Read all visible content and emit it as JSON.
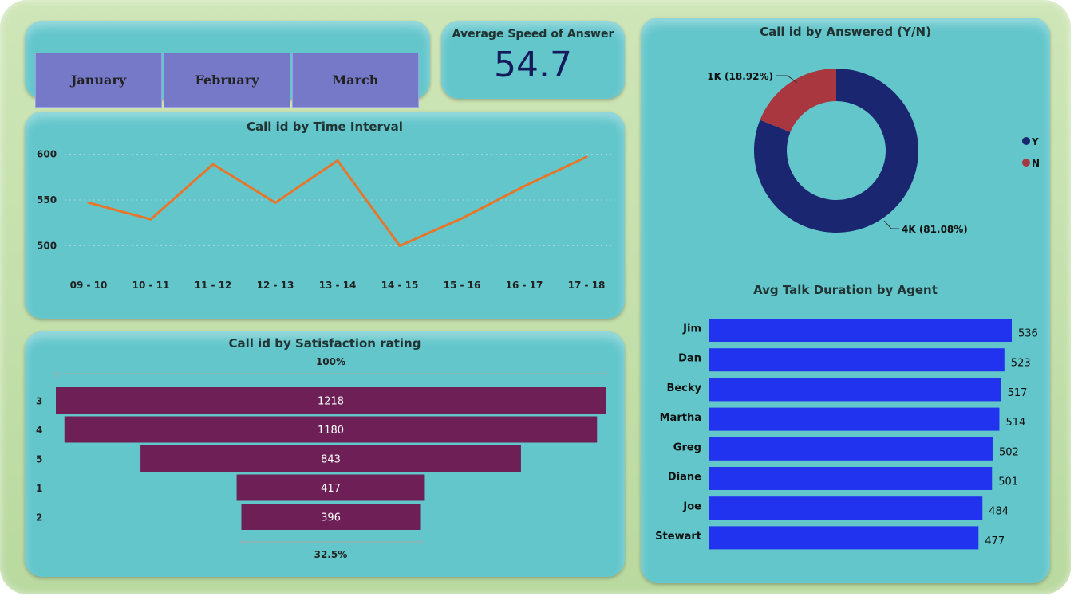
{
  "slicer": {
    "months": [
      "January",
      "February",
      "March"
    ]
  },
  "kpi": {
    "title": "Average Speed of Answer",
    "value": "54.7"
  },
  "charts": {
    "line_title": "Call id by Time Interval",
    "funnel_title": "Call id by Satisfaction rating",
    "donut_title": "Call id by Answered (Y/N)",
    "bar_title": "Avg Talk Duration by Agent"
  },
  "colors": {
    "line": "#e6762a",
    "funnel": "#6e2056",
    "donut_y": "#1b2670",
    "donut_n": "#a8373f",
    "bars": "#2233f0"
  },
  "chart_data": [
    {
      "type": "line",
      "title": "Call id by Time Interval",
      "categories": [
        "09 - 10",
        "10 - 11",
        "11 - 12",
        "12 - 13",
        "13 - 14",
        "14 - 15",
        "15 - 16",
        "16 - 17",
        "17 - 18"
      ],
      "values": [
        547,
        529,
        589,
        547,
        593,
        500,
        530,
        565,
        597
      ],
      "yticks": [
        500,
        550,
        600
      ],
      "ylim": [
        490,
        610
      ],
      "grid": true
    },
    {
      "type": "bar",
      "subtype": "funnel",
      "title": "Call id by Satisfaction rating",
      "categories": [
        "3",
        "4",
        "5",
        "1",
        "2"
      ],
      "values": [
        1218,
        1180,
        843,
        417,
        396
      ],
      "top_label": "100%",
      "bottom_label": "32.5%"
    },
    {
      "type": "pie",
      "subtype": "donut",
      "title": "Call id by Answered (Y/N)",
      "slices": [
        {
          "name": "Y",
          "value": 81.08,
          "label": "4K (81.08%)"
        },
        {
          "name": "N",
          "value": 18.92,
          "label": "1K (18.92%)"
        }
      ],
      "legend": [
        "Y",
        "N"
      ],
      "legend_position": "right"
    },
    {
      "type": "bar",
      "orientation": "horizontal",
      "title": "Avg Talk Duration by Agent",
      "categories": [
        "Jim",
        "Dan",
        "Becky",
        "Martha",
        "Greg",
        "Diane",
        "Joe",
        "Stewart"
      ],
      "values": [
        536,
        523,
        517,
        514,
        502,
        501,
        484,
        477
      ]
    }
  ]
}
